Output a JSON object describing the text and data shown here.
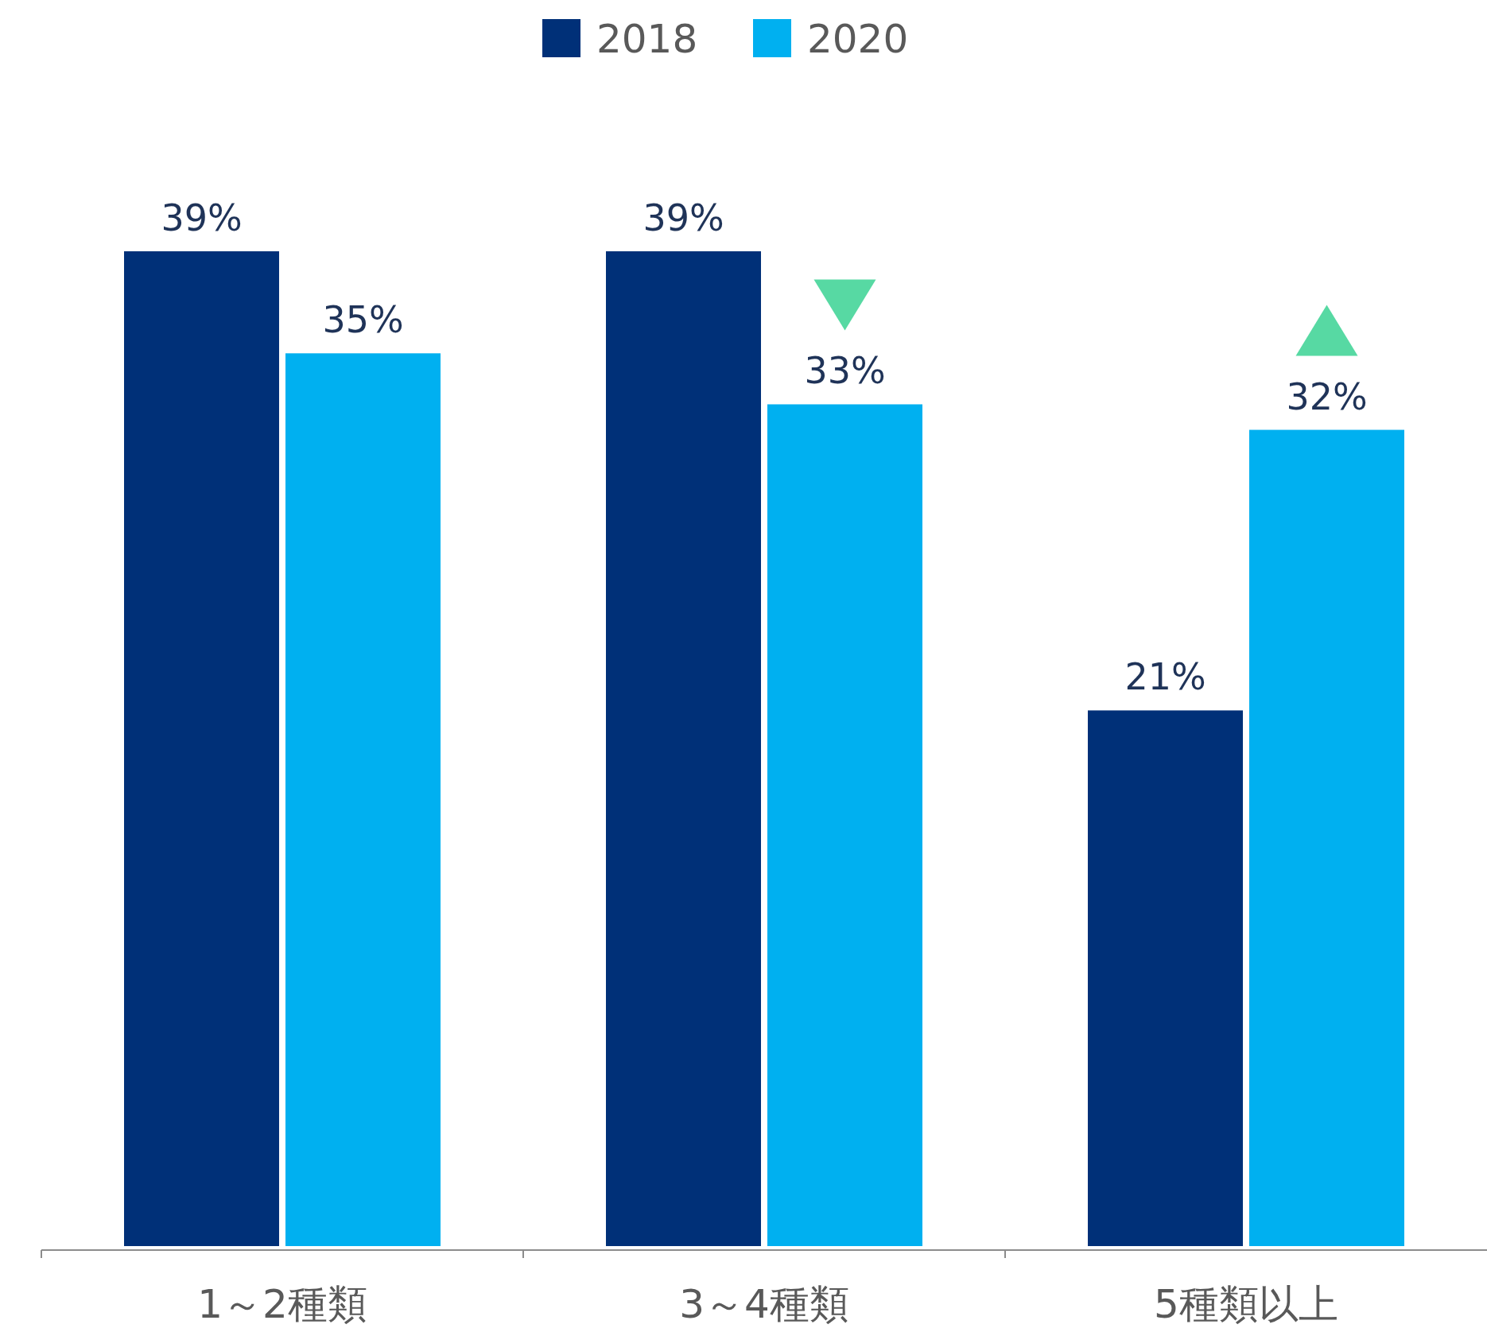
{
  "chart_data": {
    "type": "bar",
    "categories": [
      "1～2種類",
      "3～4種類",
      "5種類以上"
    ],
    "series": [
      {
        "name": "2018",
        "color": "#003078",
        "values": [
          39,
          39,
          21
        ],
        "value_labels": [
          "39%",
          "39%",
          "21%"
        ]
      },
      {
        "name": "2020",
        "color": "#00b0f0",
        "values": [
          35,
          33,
          32
        ],
        "value_labels": [
          "35%",
          "33%",
          "32%"
        ]
      }
    ],
    "legend": "top"
  }
}
